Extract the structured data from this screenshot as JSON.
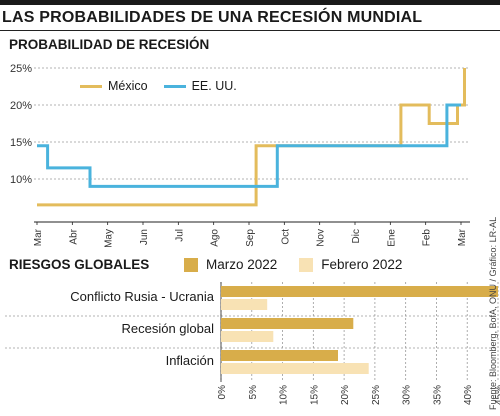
{
  "title": "LAS PROBABILIDADES DE UNA RECESIÓN MUNDIAL",
  "source": "Fuente: Bloomberg, BofA, ONU / Gráfico: LR-AL",
  "colors": {
    "mexico": "#e3bc5c",
    "eeuu": "#4ab3dd",
    "marzo": "#d8ad4a",
    "febrero": "#f8e2b4",
    "grid": "#9a9a9a"
  },
  "chart_data": [
    {
      "type": "line",
      "title": "PROBABILIDAD DE RECESIÓN",
      "x_tick_labels": [
        "Mar",
        "Abr",
        "May",
        "Jun",
        "Jul",
        "Ago",
        "Sep",
        "Oct",
        "Nov",
        "Dic",
        "Ene",
        "Feb",
        "Mar"
      ],
      "y_ticks": [
        10,
        15,
        20,
        25
      ],
      "y_tick_labels": [
        "10%",
        "15%",
        "20%",
        "25%"
      ],
      "ylim": [
        5,
        26
      ],
      "grid": true,
      "legend_position": "top-left",
      "series": [
        {
          "name": "México",
          "color_key": "mexico",
          "points": [
            [
              0,
              6.5
            ],
            [
              6.2,
              6.5
            ],
            [
              6.2,
              14.5
            ],
            [
              10.3,
              14.5
            ],
            [
              10.3,
              20
            ],
            [
              11.1,
              20
            ],
            [
              11.1,
              17.5
            ],
            [
              11.9,
              17.5
            ],
            [
              11.9,
              20
            ],
            [
              12.1,
              20
            ],
            [
              12.1,
              25
            ]
          ]
        },
        {
          "name": "EE. UU.",
          "color_key": "eeuu",
          "points": [
            [
              0,
              14.5
            ],
            [
              0.3,
              14.5
            ],
            [
              0.3,
              11.5
            ],
            [
              1.5,
              11.5
            ],
            [
              1.5,
              9
            ],
            [
              6.8,
              9
            ],
            [
              6.8,
              14.5
            ],
            [
              11.6,
              14.5
            ],
            [
              11.6,
              20
            ],
            [
              12.0,
              20
            ]
          ]
        }
      ]
    },
    {
      "type": "bar",
      "orientation": "horizontal",
      "title": "RIESGOS GLOBALES",
      "categories": [
        "Conflicto Rusia - Ucrania",
        "Recesión global",
        "Inflación"
      ],
      "series": [
        {
          "name": "Marzo 2022",
          "color_key": "marzo",
          "values": [
            45,
            21.5,
            19
          ]
        },
        {
          "name": "Febrero 2022",
          "color_key": "febrero",
          "values": [
            7.5,
            8.5,
            24
          ]
        }
      ],
      "xlim": [
        0,
        45
      ],
      "x_ticks": [
        0,
        5,
        10,
        15,
        20,
        25,
        30,
        35,
        40,
        45
      ],
      "x_tick_labels": [
        "0%",
        "5%",
        "10%",
        "15%",
        "20%",
        "25%",
        "30%",
        "35%",
        "40%",
        "45%"
      ]
    }
  ]
}
